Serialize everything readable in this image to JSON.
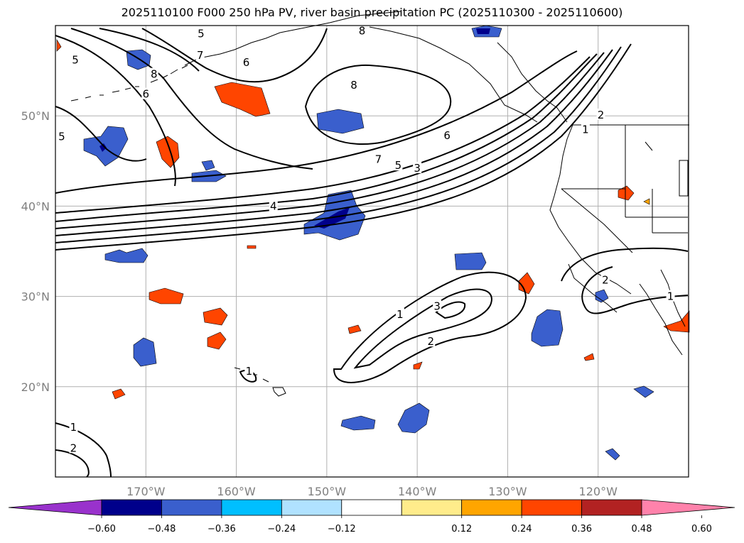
{
  "title": "2025110100 F000 250 hPa PV, river basin precipitation PC (2025110300 - 2025110600)",
  "map": {
    "lon_range": [
      -180,
      -110
    ],
    "lat_range": [
      10,
      60
    ],
    "lat_ticks": [
      {
        "value": 50,
        "label": "50°N"
      },
      {
        "value": 40,
        "label": "40°N"
      },
      {
        "value": 30,
        "label": "30°N"
      },
      {
        "value": 20,
        "label": "20°N"
      }
    ],
    "lon_ticks": [
      {
        "value": -170,
        "label": "170°W"
      },
      {
        "value": -160,
        "label": "160°W"
      },
      {
        "value": -150,
        "label": "150°W"
      },
      {
        "value": -140,
        "label": "140°W"
      },
      {
        "value": -130,
        "label": "130°W"
      },
      {
        "value": -120,
        "label": "120°W"
      }
    ],
    "contour_labels": [
      {
        "text": "5",
        "lon": -177.8,
        "lat": 56.2
      },
      {
        "text": "8",
        "lon": -169.1,
        "lat": 54.6
      },
      {
        "text": "7",
        "lon": -164.0,
        "lat": 56.7
      },
      {
        "text": "6",
        "lon": -158.9,
        "lat": 55.9
      },
      {
        "text": "5",
        "lon": -163.9,
        "lat": 59.1
      },
      {
        "text": "6",
        "lon": -170.0,
        "lat": 52.4
      },
      {
        "text": "5",
        "lon": -179.3,
        "lat": 47.7
      },
      {
        "text": "8",
        "lon": -147.0,
        "lat": 53.4
      },
      {
        "text": "8",
        "lon": -146.1,
        "lat": 59.4
      },
      {
        "text": "6",
        "lon": -136.7,
        "lat": 47.8
      },
      {
        "text": "7",
        "lon": -144.3,
        "lat": 45.2
      },
      {
        "text": "5",
        "lon": -142.1,
        "lat": 44.5
      },
      {
        "text": "3",
        "lon": -140.0,
        "lat": 44.2
      },
      {
        "text": "2",
        "lon": -119.7,
        "lat": 50.1
      },
      {
        "text": "1",
        "lon": -121.4,
        "lat": 48.5
      },
      {
        "text": "4",
        "lon": -155.9,
        "lat": 40.0
      },
      {
        "text": "1",
        "lon": -141.9,
        "lat": 28.0
      },
      {
        "text": "3",
        "lon": -137.8,
        "lat": 28.9
      },
      {
        "text": "2",
        "lon": -138.5,
        "lat": 25.0
      },
      {
        "text": "2",
        "lon": -119.2,
        "lat": 31.8
      },
      {
        "text": "1",
        "lon": -112.0,
        "lat": 30.0
      },
      {
        "text": "1",
        "lon": -158.6,
        "lat": 21.7
      },
      {
        "text": "1",
        "lon": -178.0,
        "lat": 15.5
      },
      {
        "text": "2",
        "lon": -178.0,
        "lat": 13.2
      }
    ]
  },
  "colorbar": {
    "colors": [
      "#9932cc",
      "#00008b",
      "#3a5fcd",
      "#00bfff",
      "#b0e2ff",
      "#ffffff",
      "#ffec8b",
      "#ffa500",
      "#ff4500",
      "#b22222",
      "#ff82ab"
    ],
    "tick_labels": [
      "−0.60",
      "−0.48",
      "−0.36",
      "−0.24",
      "−0.12",
      "0.12",
      "0.24",
      "0.36",
      "0.48",
      "0.60"
    ]
  }
}
